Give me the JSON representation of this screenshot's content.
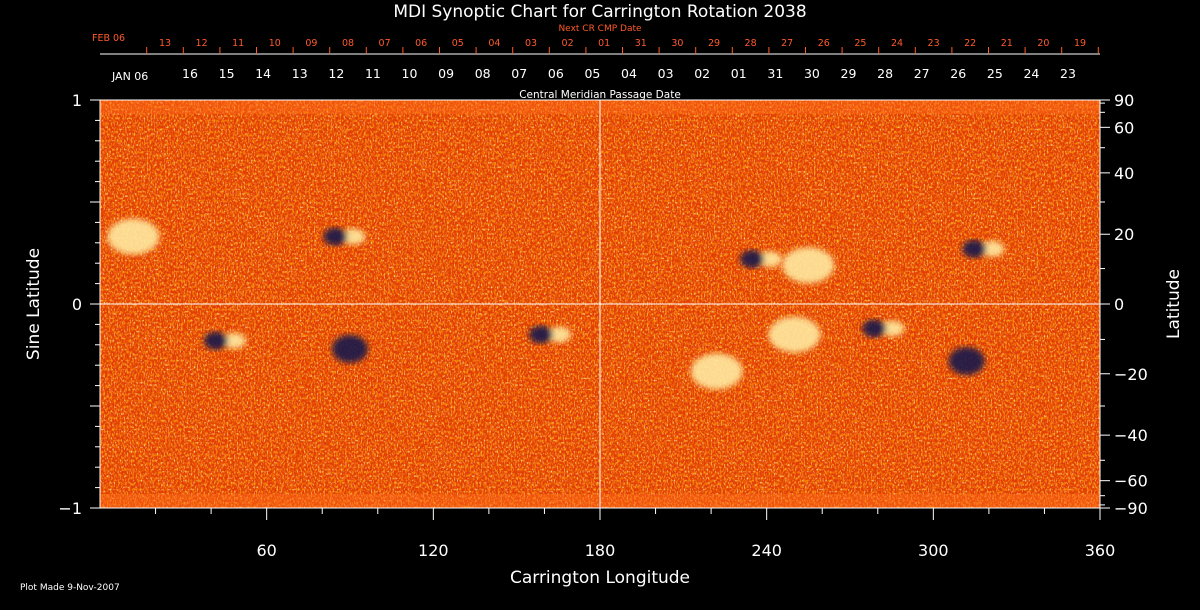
{
  "chart_data": {
    "type": "heatmap",
    "title": "MDI Synoptic Chart for Carrington Rotation 2038",
    "xlabel": "Carrington Longitude",
    "ylabel": "Sine Latitude",
    "ylabel_right": "Latitude",
    "xlim": [
      0,
      360
    ],
    "ylim": [
      -1,
      1
    ],
    "x_ticks": [
      60,
      120,
      180,
      240,
      300,
      360
    ],
    "y_ticks_left": [
      -1,
      0,
      1
    ],
    "y_ticks_left_labels": [
      "−1",
      "0",
      "1"
    ],
    "y_ticks_right": [
      90,
      60,
      40,
      20,
      0,
      -20,
      -40,
      -60,
      -90
    ],
    "y_ticks_right_labels": [
      "90",
      "60",
      "40",
      "20",
      "0",
      "−20",
      "−40",
      "−60",
      "−90"
    ],
    "grid": "crosshair at longitude 180 and latitude 0",
    "colormap": [
      "#1a1a5a",
      "#3a1010",
      "#b01a00",
      "#ff4a00",
      "#ff8a10",
      "#ffd060",
      "#ffffff"
    ],
    "active_regions": [
      {
        "lon": 238,
        "lat_sine": 0.22,
        "polarity": "mixed"
      },
      {
        "lon": 255,
        "lat_sine": 0.19,
        "polarity": "positive"
      },
      {
        "lon": 318,
        "lat_sine": 0.27,
        "polarity": "mixed"
      },
      {
        "lon": 88,
        "lat_sine": 0.33,
        "polarity": "mixed"
      },
      {
        "lon": 45,
        "lat_sine": -0.18,
        "polarity": "mixed"
      },
      {
        "lon": 90,
        "lat_sine": -0.22,
        "polarity": "negative"
      },
      {
        "lon": 162,
        "lat_sine": -0.15,
        "polarity": "mixed"
      },
      {
        "lon": 250,
        "lat_sine": -0.15,
        "polarity": "positive"
      },
      {
        "lon": 222,
        "lat_sine": -0.33,
        "polarity": "positive"
      },
      {
        "lon": 282,
        "lat_sine": -0.12,
        "polarity": "mixed"
      },
      {
        "lon": 312,
        "lat_sine": -0.28,
        "polarity": "negative"
      },
      {
        "lon": 12,
        "lat_sine": 0.33,
        "polarity": "positive"
      }
    ]
  },
  "dates": {
    "top_caption": "Next CR CMP Date",
    "top_month": "FEB 06",
    "top_days": [
      "13",
      "12",
      "11",
      "10",
      "09",
      "08",
      "07",
      "06",
      "05",
      "04",
      "03",
      "02",
      "01",
      "31",
      "30",
      "29",
      "28",
      "27",
      "26",
      "25",
      "24",
      "23",
      "22",
      "21",
      "20",
      "19"
    ],
    "bottom_month": "JAN 06",
    "bottom_days": [
      "16",
      "15",
      "14",
      "13",
      "12",
      "11",
      "10",
      "09",
      "08",
      "07",
      "06",
      "05",
      "04",
      "03",
      "02",
      "01",
      "31",
      "30",
      "29",
      "28",
      "27",
      "26",
      "25",
      "24",
      "23"
    ],
    "bottom_caption": "Central Meridian Passage Date"
  },
  "footer": {
    "plot_made": "Plot Made  9-Nov-2007"
  }
}
